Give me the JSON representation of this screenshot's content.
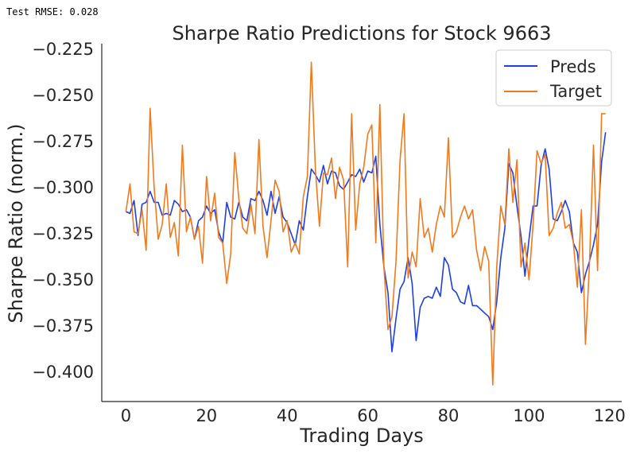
{
  "annotation": "Test RMSE: 0.028",
  "chart_data": {
    "type": "line",
    "title": "Sharpe Ratio Predictions for Stock 9663",
    "xlabel": "Trading Days",
    "ylabel": "Sharpe Ratio (norm.)",
    "xlim": [
      -6,
      123
    ],
    "ylim": [
      -0.416,
      -0.222
    ],
    "xticks": [
      0,
      20,
      40,
      60,
      80,
      100,
      120
    ],
    "yticks": [
      -0.225,
      -0.25,
      -0.275,
      -0.3,
      -0.325,
      -0.35,
      -0.375,
      -0.4
    ],
    "xtick_labels": [
      "0",
      "20",
      "40",
      "60",
      "80",
      "100",
      "120"
    ],
    "ytick_labels": [
      "−0.225",
      "−0.250",
      "−0.275",
      "−0.300",
      "−0.325",
      "−0.350",
      "−0.375",
      "−0.400"
    ],
    "grid": false,
    "legend": "top-right",
    "series": [
      {
        "name": "Preds",
        "color": "#1f3fe0",
        "x": [
          0,
          1,
          2,
          3,
          4,
          5,
          6,
          7,
          8,
          9,
          10,
          11,
          12,
          13,
          14,
          15,
          16,
          17,
          18,
          19,
          20,
          21,
          22,
          23,
          24,
          25,
          26,
          27,
          28,
          29,
          30,
          31,
          32,
          33,
          34,
          35,
          36,
          37,
          38,
          39,
          40,
          41,
          42,
          43,
          44,
          45,
          46,
          47,
          48,
          49,
          50,
          51,
          52,
          53,
          54,
          55,
          56,
          57,
          58,
          59,
          60,
          61,
          62,
          63,
          64,
          65,
          66,
          67,
          68,
          69,
          70,
          71,
          72,
          73,
          74,
          75,
          76,
          77,
          78,
          79,
          80,
          81,
          82,
          83,
          84,
          85,
          86,
          87,
          88,
          89,
          90,
          91,
          92,
          93,
          94,
          95,
          96,
          97,
          98,
          99,
          100,
          101,
          102,
          103,
          104,
          105,
          106,
          107,
          108,
          109,
          110,
          111,
          112,
          113,
          114,
          115,
          116,
          117,
          118,
          119
        ],
        "values": [
          -0.313,
          -0.314,
          -0.307,
          -0.326,
          -0.309,
          -0.308,
          -0.302,
          -0.308,
          -0.308,
          -0.315,
          -0.314,
          -0.315,
          -0.307,
          -0.309,
          -0.313,
          -0.312,
          -0.316,
          -0.328,
          -0.318,
          -0.316,
          -0.31,
          -0.314,
          -0.312,
          -0.324,
          -0.33,
          -0.308,
          -0.316,
          -0.317,
          -0.308,
          -0.316,
          -0.318,
          -0.306,
          -0.307,
          -0.302,
          -0.307,
          -0.315,
          -0.302,
          -0.314,
          -0.305,
          -0.316,
          -0.319,
          -0.325,
          -0.331,
          -0.318,
          -0.323,
          -0.305,
          -0.29,
          -0.293,
          -0.297,
          -0.288,
          -0.298,
          -0.291,
          -0.292,
          -0.299,
          -0.301,
          -0.297,
          -0.293,
          -0.294,
          -0.29,
          -0.297,
          -0.291,
          -0.292,
          -0.283,
          -0.32,
          -0.343,
          -0.357,
          -0.389,
          -0.371,
          -0.355,
          -0.351,
          -0.338,
          -0.352,
          -0.383,
          -0.365,
          -0.36,
          -0.359,
          -0.36,
          -0.354,
          -0.359,
          -0.338,
          -0.342,
          -0.355,
          -0.357,
          -0.362,
          -0.363,
          -0.353,
          -0.364,
          -0.364,
          -0.366,
          -0.368,
          -0.37,
          -0.377,
          -0.362,
          -0.338,
          -0.322,
          -0.287,
          -0.292,
          -0.31,
          -0.326,
          -0.348,
          -0.328,
          -0.31,
          -0.31,
          -0.288,
          -0.279,
          -0.29,
          -0.317,
          -0.318,
          -0.313,
          -0.307,
          -0.313,
          -0.33,
          -0.335,
          -0.357,
          -0.347,
          -0.34,
          -0.331,
          -0.32,
          -0.286,
          -0.27
        ]
      },
      {
        "name": "Target",
        "color": "#f07a1e",
        "x": [
          0,
          1,
          2,
          3,
          4,
          5,
          6,
          7,
          8,
          9,
          10,
          11,
          12,
          13,
          14,
          15,
          16,
          17,
          18,
          19,
          20,
          21,
          22,
          23,
          24,
          25,
          26,
          27,
          28,
          29,
          30,
          31,
          32,
          33,
          34,
          35,
          36,
          37,
          38,
          39,
          40,
          41,
          42,
          43,
          44,
          45,
          46,
          47,
          48,
          49,
          50,
          51,
          52,
          53,
          54,
          55,
          56,
          57,
          58,
          59,
          60,
          61,
          62,
          63,
          64,
          65,
          66,
          67,
          68,
          69,
          70,
          71,
          72,
          73,
          74,
          75,
          76,
          77,
          78,
          79,
          80,
          81,
          82,
          83,
          84,
          85,
          86,
          87,
          88,
          89,
          90,
          91,
          92,
          93,
          94,
          95,
          96,
          97,
          98,
          99,
          100,
          101,
          102,
          103,
          104,
          105,
          106,
          107,
          108,
          109,
          110,
          111,
          112,
          113,
          114,
          115,
          116,
          117,
          118,
          119
        ],
        "values": [
          -0.313,
          -0.298,
          -0.324,
          -0.325,
          -0.312,
          -0.334,
          -0.257,
          -0.3,
          -0.328,
          -0.32,
          -0.298,
          -0.327,
          -0.319,
          -0.337,
          -0.277,
          -0.324,
          -0.316,
          -0.328,
          -0.321,
          -0.341,
          -0.294,
          -0.318,
          -0.303,
          -0.327,
          -0.33,
          -0.352,
          -0.336,
          -0.281,
          -0.306,
          -0.322,
          -0.325,
          -0.309,
          -0.325,
          -0.274,
          -0.321,
          -0.338,
          -0.318,
          -0.296,
          -0.302,
          -0.324,
          -0.318,
          -0.335,
          -0.33,
          -0.336,
          -0.305,
          -0.294,
          -0.232,
          -0.29,
          -0.321,
          -0.292,
          -0.293,
          -0.284,
          -0.306,
          -0.289,
          -0.296,
          -0.343,
          -0.26,
          -0.323,
          -0.298,
          -0.289,
          -0.271,
          -0.266,
          -0.33,
          -0.255,
          -0.343,
          -0.377,
          -0.37,
          -0.34,
          -0.285,
          -0.26,
          -0.349,
          -0.335,
          -0.343,
          -0.306,
          -0.327,
          -0.322,
          -0.335,
          -0.32,
          -0.31,
          -0.316,
          -0.273,
          -0.327,
          -0.324,
          -0.316,
          -0.31,
          -0.317,
          -0.312,
          -0.334,
          -0.345,
          -0.332,
          -0.34,
          -0.407,
          -0.343,
          -0.31,
          -0.32,
          -0.279,
          -0.308,
          -0.285,
          -0.343,
          -0.33,
          -0.35,
          -0.32,
          -0.28,
          -0.287,
          -0.282,
          -0.326,
          -0.322,
          -0.314,
          -0.308,
          -0.322,
          -0.32,
          -0.33,
          -0.354,
          -0.312,
          -0.385,
          -0.342,
          -0.277,
          -0.345,
          -0.26,
          -0.26
        ]
      }
    ]
  }
}
